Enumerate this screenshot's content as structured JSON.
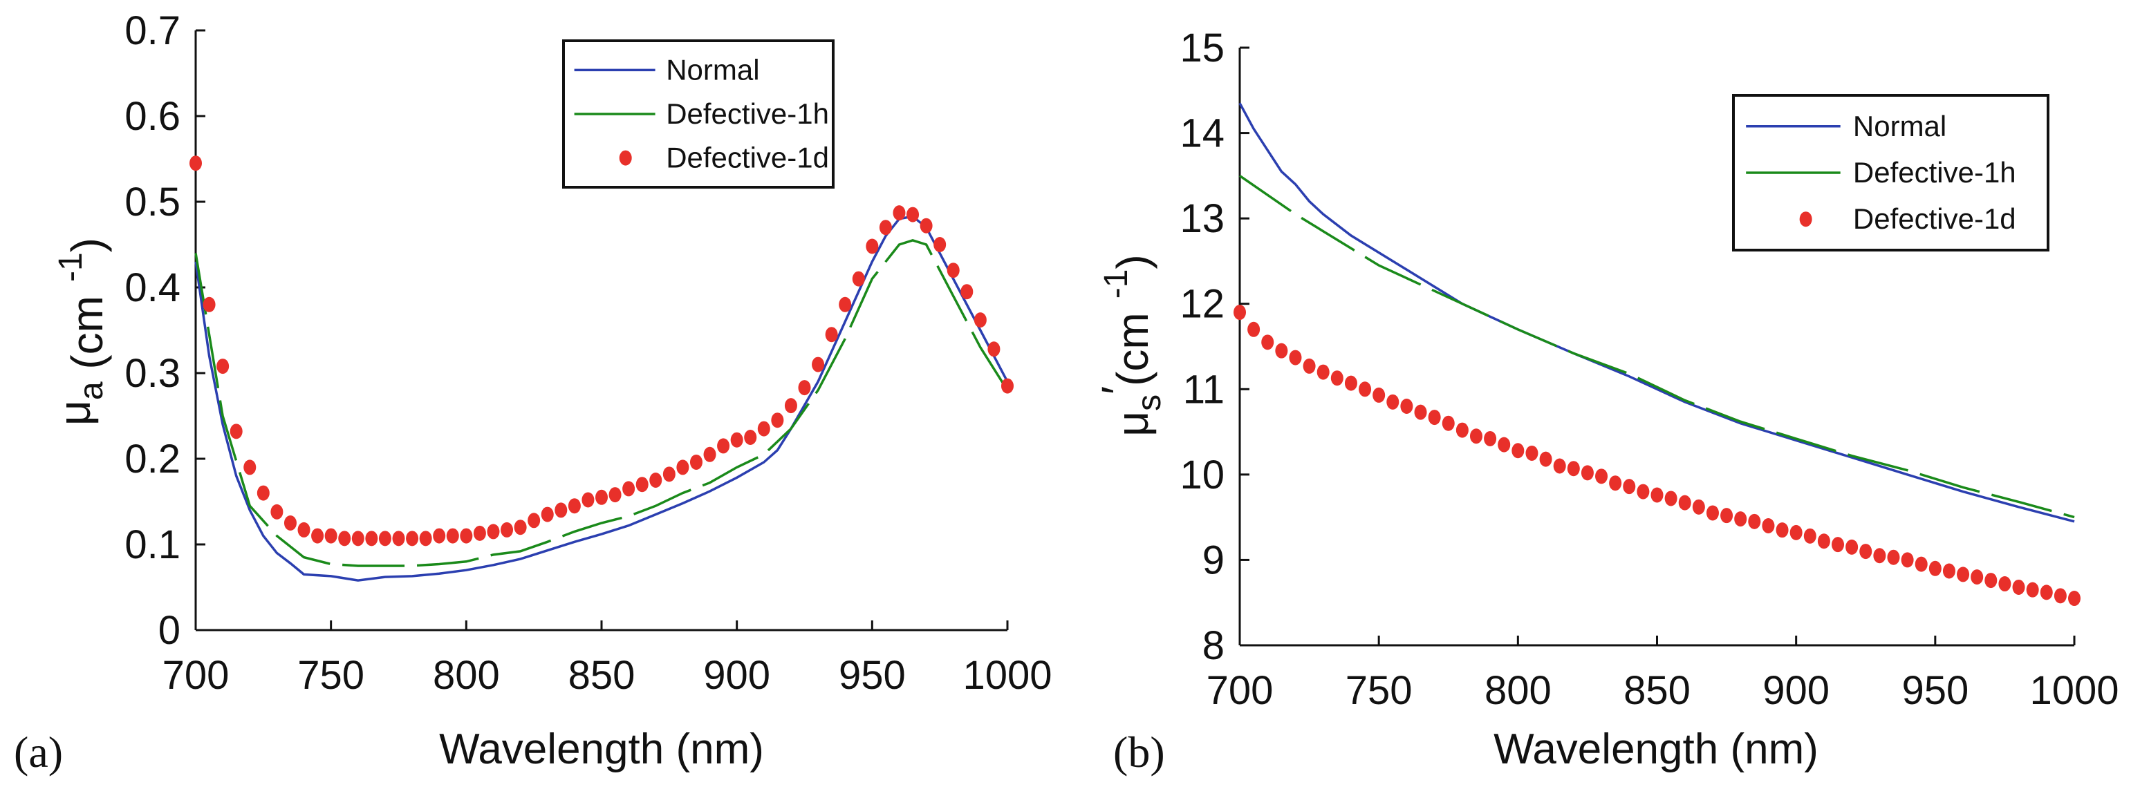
{
  "colors": {
    "normal": "#2b3fb0",
    "defective_1h": "#1a8a1a",
    "defective_1d": "#e8302a",
    "axis": "#111111"
  },
  "chart_data": [
    {
      "type": "line",
      "panel_label": "(a)",
      "xlabel": "Wavelength (nm)",
      "ylabel": {
        "symbol": "μ",
        "sub": "a",
        "unit_open": " (cm",
        "sup": "-1",
        "unit_close": ")"
      },
      "xlim": [
        700,
        1000
      ],
      "ylim": [
        0,
        0.7
      ],
      "xticks": [
        700,
        750,
        800,
        850,
        900,
        950,
        1000
      ],
      "yticks": [
        0,
        0.1,
        0.2,
        0.3,
        0.4,
        0.5,
        0.6,
        0.7
      ],
      "ytick_labels": [
        "0",
        "0.1",
        "0.2",
        "0.3",
        "0.4",
        "0.5",
        "0.6",
        "0.7"
      ],
      "grid": false,
      "legend_position": "top-right",
      "series": [
        {
          "name": "Normal",
          "style": "solid",
          "x": [
            700,
            705,
            710,
            715,
            720,
            725,
            730,
            735,
            740,
            750,
            760,
            770,
            780,
            790,
            800,
            810,
            820,
            830,
            840,
            850,
            860,
            870,
            880,
            890,
            900,
            910,
            915,
            920,
            930,
            940,
            950,
            955,
            960,
            965,
            970,
            980,
            990,
            1000
          ],
          "y": [
            0.43,
            0.32,
            0.24,
            0.18,
            0.14,
            0.11,
            0.09,
            0.078,
            0.065,
            0.063,
            0.058,
            0.062,
            0.063,
            0.066,
            0.07,
            0.076,
            0.083,
            0.093,
            0.103,
            0.112,
            0.122,
            0.135,
            0.148,
            0.162,
            0.178,
            0.196,
            0.21,
            0.235,
            0.29,
            0.36,
            0.43,
            0.46,
            0.48,
            0.483,
            0.47,
            0.41,
            0.35,
            0.29
          ]
        },
        {
          "name": "Defective-1h",
          "style": "dashed",
          "x": [
            700,
            710,
            720,
            730,
            740,
            750,
            760,
            770,
            780,
            790,
            800,
            810,
            820,
            830,
            840,
            850,
            860,
            870,
            880,
            890,
            900,
            910,
            920,
            930,
            940,
            950,
            960,
            965,
            970,
            980,
            990,
            1000
          ],
          "y": [
            0.44,
            0.25,
            0.145,
            0.11,
            0.085,
            0.077,
            0.075,
            0.075,
            0.075,
            0.077,
            0.08,
            0.088,
            0.092,
            0.103,
            0.115,
            0.125,
            0.133,
            0.145,
            0.16,
            0.172,
            0.19,
            0.205,
            0.235,
            0.28,
            0.34,
            0.41,
            0.45,
            0.455,
            0.45,
            0.39,
            0.33,
            0.28
          ]
        },
        {
          "name": "Defective-1d",
          "style": "markers",
          "x": [
            700,
            705,
            710,
            715,
            720,
            725,
            730,
            735,
            740,
            745,
            750,
            755,
            760,
            765,
            770,
            775,
            780,
            785,
            790,
            795,
            800,
            805,
            810,
            815,
            820,
            825,
            830,
            835,
            840,
            845,
            850,
            855,
            860,
            865,
            870,
            875,
            880,
            885,
            890,
            895,
            900,
            905,
            910,
            915,
            920,
            925,
            930,
            935,
            940,
            945,
            950,
            955,
            960,
            965,
            970,
            975,
            980,
            985,
            990,
            995,
            1000
          ],
          "y": [
            0.545,
            0.38,
            0.308,
            0.232,
            0.19,
            0.16,
            0.138,
            0.125,
            0.117,
            0.11,
            0.11,
            0.107,
            0.107,
            0.107,
            0.107,
            0.107,
            0.107,
            0.107,
            0.11,
            0.11,
            0.11,
            0.113,
            0.115,
            0.117,
            0.12,
            0.128,
            0.135,
            0.14,
            0.145,
            0.152,
            0.155,
            0.158,
            0.165,
            0.17,
            0.175,
            0.182,
            0.19,
            0.196,
            0.205,
            0.215,
            0.222,
            0.225,
            0.235,
            0.245,
            0.262,
            0.283,
            0.31,
            0.345,
            0.38,
            0.41,
            0.448,
            0.47,
            0.487,
            0.485,
            0.472,
            0.45,
            0.42,
            0.395,
            0.362,
            0.328,
            0.285
          ]
        }
      ]
    },
    {
      "type": "line",
      "panel_label": "(b)",
      "xlabel": "Wavelength (nm)",
      "ylabel": {
        "symbol": "μ",
        "sub": "s",
        "prime": "′",
        "unit_open": "(cm",
        "sup": "-1",
        "unit_close": ")"
      },
      "xlim": [
        700,
        1000
      ],
      "ylim": [
        8,
        15
      ],
      "xticks": [
        700,
        750,
        800,
        850,
        900,
        950,
        1000
      ],
      "yticks": [
        8,
        9,
        10,
        11,
        12,
        13,
        14,
        15
      ],
      "ytick_labels": [
        "8",
        "9",
        "10",
        "11",
        "12",
        "13",
        "14",
        "15"
      ],
      "grid": false,
      "legend_position": "top-right",
      "series": [
        {
          "name": "Normal",
          "style": "solid",
          "x": [
            700,
            705,
            710,
            715,
            720,
            725,
            730,
            740,
            750,
            760,
            770,
            780,
            790,
            800,
            820,
            840,
            860,
            880,
            900,
            920,
            940,
            960,
            980,
            1000
          ],
          "y": [
            14.35,
            14.05,
            13.8,
            13.55,
            13.4,
            13.2,
            13.05,
            12.8,
            12.6,
            12.4,
            12.2,
            12.0,
            11.85,
            11.7,
            11.42,
            11.15,
            10.85,
            10.6,
            10.4,
            10.2,
            10.0,
            9.8,
            9.62,
            9.45
          ]
        },
        {
          "name": "Defective-1h",
          "style": "dashed",
          "x": [
            700,
            720,
            730,
            750,
            760,
            780,
            800,
            820,
            840,
            860,
            880,
            900,
            920,
            940,
            960,
            980,
            1000
          ],
          "y": [
            13.5,
            13.05,
            12.85,
            12.45,
            12.3,
            12.0,
            11.7,
            11.42,
            11.18,
            10.87,
            10.62,
            10.42,
            10.22,
            10.05,
            9.85,
            9.68,
            9.5
          ]
        },
        {
          "name": "Defective-1d",
          "style": "markers",
          "x": [
            700,
            705,
            710,
            715,
            720,
            725,
            730,
            735,
            740,
            745,
            750,
            755,
            760,
            765,
            770,
            775,
            780,
            785,
            790,
            795,
            800,
            805,
            810,
            815,
            820,
            825,
            830,
            835,
            840,
            845,
            850,
            855,
            860,
            865,
            870,
            875,
            880,
            885,
            890,
            895,
            900,
            905,
            910,
            915,
            920,
            925,
            930,
            935,
            940,
            945,
            950,
            955,
            960,
            965,
            970,
            975,
            980,
            985,
            990,
            995,
            1000
          ],
          "y": [
            11.9,
            11.7,
            11.55,
            11.45,
            11.37,
            11.27,
            11.2,
            11.13,
            11.07,
            11.0,
            10.93,
            10.85,
            10.8,
            10.73,
            10.67,
            10.6,
            10.52,
            10.45,
            10.42,
            10.35,
            10.28,
            10.25,
            10.18,
            10.1,
            10.07,
            10.02,
            9.98,
            9.9,
            9.86,
            9.8,
            9.76,
            9.72,
            9.67,
            9.62,
            9.55,
            9.52,
            9.48,
            9.45,
            9.4,
            9.35,
            9.32,
            9.28,
            9.22,
            9.18,
            9.15,
            9.1,
            9.05,
            9.03,
            9.0,
            8.95,
            8.9,
            8.87,
            8.83,
            8.8,
            8.76,
            8.72,
            8.68,
            8.65,
            8.62,
            8.58,
            8.55
          ]
        }
      ]
    }
  ]
}
